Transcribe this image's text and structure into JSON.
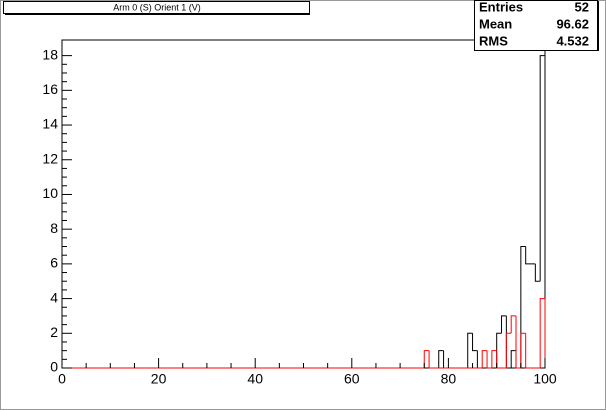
{
  "chart_data": {
    "type": "histogram",
    "title": "Arm 0 (S) Orient 1 (V)",
    "bins": [
      0,
      1,
      2,
      3,
      4,
      5,
      6,
      7,
      8,
      9,
      10,
      11,
      12,
      13,
      14,
      15,
      16,
      17,
      18,
      19,
      20,
      21,
      22,
      23,
      24,
      25,
      26,
      27,
      28,
      29,
      30,
      31,
      32,
      33,
      34,
      35,
      36,
      37,
      38,
      39,
      40,
      41,
      42,
      43,
      44,
      45,
      46,
      47,
      48,
      49,
      50,
      51,
      52,
      53,
      54,
      55,
      56,
      57,
      58,
      59,
      60,
      61,
      62,
      63,
      64,
      65,
      66,
      67,
      68,
      69,
      70,
      71,
      72,
      73,
      74,
      75,
      76,
      77,
      78,
      79,
      80,
      81,
      82,
      83,
      84,
      85,
      86,
      87,
      88,
      89,
      90,
      91,
      92,
      93,
      94,
      95,
      96,
      97,
      98,
      99,
      100
    ],
    "series": [
      {
        "color": "#000000",
        "values": [
          0,
          0,
          0,
          0,
          0,
          0,
          0,
          0,
          0,
          0,
          0,
          0,
          0,
          0,
          0,
          0,
          0,
          0,
          0,
          0,
          0,
          0,
          0,
          0,
          0,
          0,
          0,
          0,
          0,
          0,
          0,
          0,
          0,
          0,
          0,
          0,
          0,
          0,
          0,
          0,
          0,
          0,
          0,
          0,
          0,
          0,
          0,
          0,
          0,
          0,
          0,
          0,
          0,
          0,
          0,
          0,
          0,
          0,
          0,
          0,
          0,
          0,
          0,
          0,
          0,
          0,
          0,
          0,
          0,
          0,
          0,
          0,
          0,
          0,
          0,
          0,
          0,
          0,
          1,
          0,
          0,
          0,
          0,
          0,
          2,
          1,
          0,
          0,
          0,
          0,
          2,
          3,
          0,
          1,
          0,
          7,
          6,
          6,
          5,
          18
        ]
      },
      {
        "color": "#ff0000",
        "values": [
          0,
          0,
          0,
          0,
          0,
          0,
          0,
          0,
          0,
          0,
          0,
          0,
          0,
          0,
          0,
          0,
          0,
          0,
          0,
          0,
          0,
          0,
          0,
          0,
          0,
          0,
          0,
          0,
          0,
          0,
          0,
          0,
          0,
          0,
          0,
          0,
          0,
          0,
          0,
          0,
          0,
          0,
          0,
          0,
          0,
          0,
          0,
          0,
          0,
          0,
          0,
          0,
          0,
          0,
          0,
          0,
          0,
          0,
          0,
          0,
          0,
          0,
          0,
          0,
          0,
          0,
          0,
          0,
          0,
          0,
          0,
          0,
          0,
          0,
          0,
          1,
          0,
          0,
          0,
          0,
          0,
          0,
          0,
          0,
          0,
          0,
          0,
          1,
          0,
          1,
          0,
          0,
          2,
          3,
          0,
          2,
          0,
          0,
          0,
          4
        ]
      }
    ],
    "xlim": [
      0,
      100
    ],
    "xticks": [
      0,
      20,
      40,
      60,
      80,
      100
    ],
    "ylim": [
      0,
      18.9
    ],
    "yticks": [
      0,
      2,
      4,
      6,
      8,
      10,
      12,
      14,
      16,
      18
    ],
    "stats": [
      {
        "label": "Entries",
        "value": 52
      },
      {
        "label": "Mean",
        "value": 96.62
      },
      {
        "label": "RMS",
        "value": 4.532
      }
    ]
  }
}
